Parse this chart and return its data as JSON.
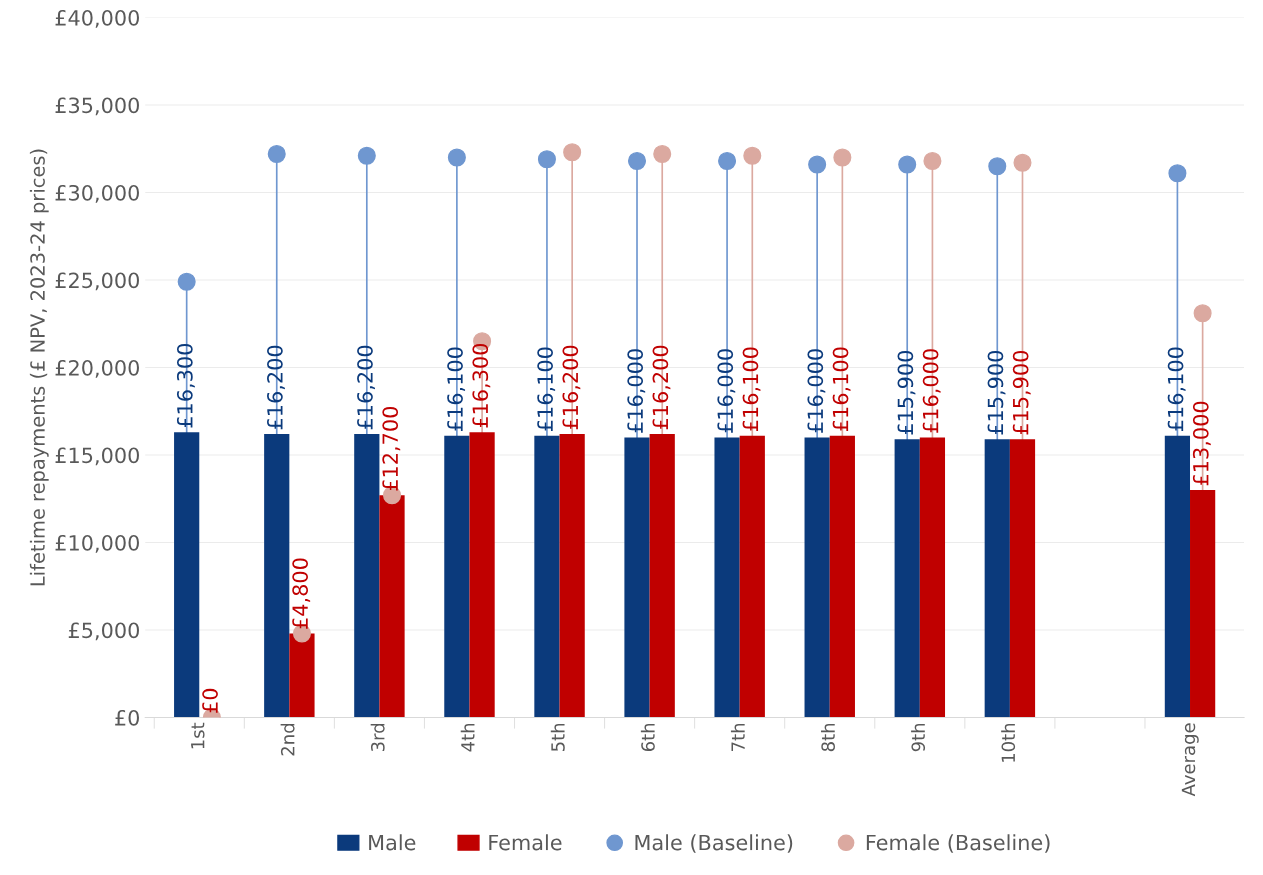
{
  "chart_data": {
    "type": "bar",
    "ylabel": "Lifetime repayments (£ NPV, 2023-24 prices)",
    "categories": [
      "1st",
      "2nd",
      "3rd",
      "4th",
      "5th",
      "6th",
      "7th",
      "8th",
      "9th",
      "10th",
      null,
      "Average"
    ],
    "series": [
      {
        "name": "Male",
        "color": "#0b3a7c",
        "values": [
          16300,
          16200,
          16200,
          16100,
          16100,
          16000,
          16000,
          16000,
          15900,
          15900,
          null,
          16100
        ],
        "value_labels": [
          "£16,300",
          "£16,200",
          "£16,200",
          "£16,100",
          "£16,100",
          "£16,000",
          "£16,000",
          "£16,000",
          "£15,900",
          "£15,900",
          null,
          "£16,100"
        ]
      },
      {
        "name": "Female",
        "color": "#c00000",
        "values": [
          0,
          4800,
          12700,
          16300,
          16200,
          16200,
          16100,
          16100,
          16000,
          15900,
          null,
          13000
        ],
        "value_labels": [
          "£0",
          "£4,800",
          "£12,700",
          "£16,300",
          "£16,200",
          "£16,200",
          "£16,100",
          "£16,100",
          "£16,000",
          "£15,900",
          null,
          "£13,000"
        ]
      },
      {
        "name": "Male (Baseline)",
        "type": "lollipop",
        "color": "#6f97d0",
        "values": [
          24900,
          32200,
          32100,
          32000,
          31900,
          31800,
          31800,
          31600,
          31600,
          31500,
          null,
          31100
        ]
      },
      {
        "name": "Female (Baseline)",
        "type": "lollipop",
        "color": "#dba9a0",
        "values": [
          0,
          4800,
          12700,
          21500,
          32300,
          32200,
          32100,
          32000,
          31800,
          31700,
          null,
          23100
        ]
      }
    ],
    "ylim": [
      0,
      40000
    ],
    "yticks": [
      {
        "value": 0,
        "label": "£0"
      },
      {
        "value": 5000,
        "label": "£5,000"
      },
      {
        "value": 10000,
        "label": "£10,000"
      },
      {
        "value": 15000,
        "label": "£15,000"
      },
      {
        "value": 20000,
        "label": "£20,000"
      },
      {
        "value": 25000,
        "label": "£25,000"
      },
      {
        "value": 30000,
        "label": "£30,000"
      },
      {
        "value": 35000,
        "label": "£35,000"
      },
      {
        "value": 40000,
        "label": "£40,000"
      }
    ],
    "grid": "y",
    "legend": "bottom",
    "marker": "circle"
  }
}
